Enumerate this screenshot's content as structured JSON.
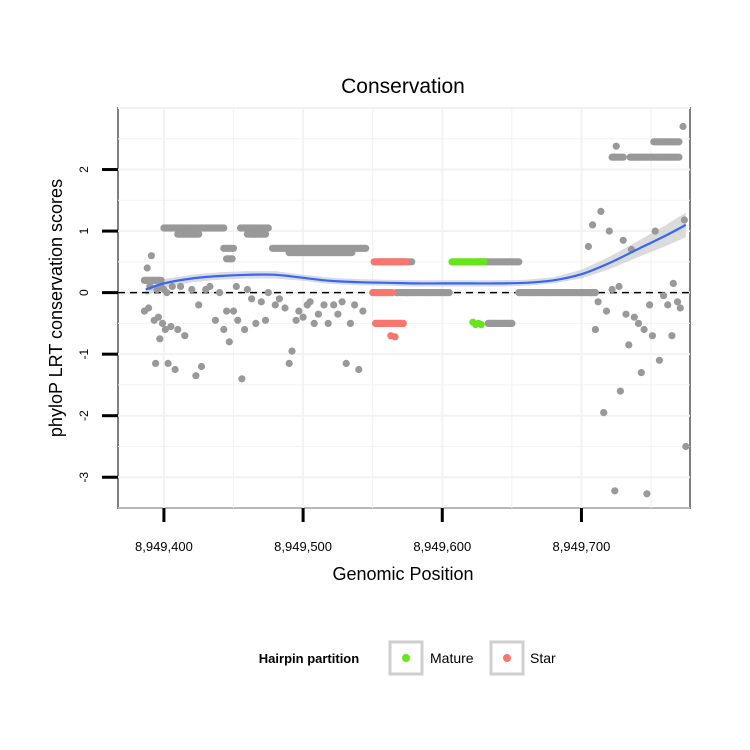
{
  "chart_data": {
    "type": "scatter",
    "title": "Conservation",
    "xlabel": "Genomic Position",
    "ylabel": "phyloP LRT conservation scores",
    "xlim": [
      8949367,
      8949778
    ],
    "ylim": [
      -3.5,
      3.0
    ],
    "x_ticks": [
      8949400,
      8949500,
      8949600,
      8949700
    ],
    "x_tick_labels": [
      "8,949,400",
      "8,949,500",
      "8,949,600",
      "8,949,700"
    ],
    "y_ticks": [
      -3,
      -2,
      -1,
      0,
      1,
      2
    ],
    "y_tick_labels": [
      "-3",
      "-2",
      "-1",
      "0",
      "1",
      "2"
    ],
    "grid": true,
    "reference_line": {
      "y": 0,
      "style": "dashed"
    },
    "legend": {
      "title": "Hairpin partition",
      "position": "bottom",
      "entries": [
        {
          "label": "Mature",
          "color": "#66e619"
        },
        {
          "label": "Star",
          "color": "#f8766d"
        }
      ]
    },
    "colors": {
      "other": "#999999",
      "Mature": "#66e619",
      "Star": "#f8766d",
      "smooth": "#3366ff",
      "ribbon": "#c8c8c8"
    },
    "series": [
      {
        "name": "Other",
        "points": [
          [
            8949386,
            -0.3
          ],
          [
            8949387,
            0.2
          ],
          [
            8949388,
            0.4
          ],
          [
            8949389,
            -0.25
          ],
          [
            8949390,
            0.1
          ],
          [
            8949391,
            0.6
          ],
          [
            8949392,
            0.2
          ],
          [
            8949393,
            -0.45
          ],
          [
            8949394,
            -1.15
          ],
          [
            8949395,
            0.05
          ],
          [
            8949396,
            -0.4
          ],
          [
            8949397,
            -0.75
          ],
          [
            8949398,
            0.1
          ],
          [
            8949399,
            -0.5
          ],
          [
            8949400,
            0.05
          ],
          [
            8949401,
            -0.6
          ],
          [
            8949402,
            0.0
          ],
          [
            8949403,
            -1.15
          ],
          [
            8949405,
            -0.55
          ],
          [
            8949406,
            0.1
          ],
          [
            8949408,
            -1.25
          ],
          [
            8949410,
            -0.6
          ],
          [
            8949412,
            0.1
          ],
          [
            8949415,
            -0.7
          ],
          [
            8949420,
            0.05
          ],
          [
            8949423,
            -1.35
          ],
          [
            8949425,
            -0.2
          ],
          [
            8949427,
            -1.2
          ],
          [
            8949430,
            0.05
          ],
          [
            8949433,
            0.1
          ],
          [
            8949437,
            -0.45
          ],
          [
            8949440,
            0.0
          ],
          [
            8949443,
            -0.6
          ],
          [
            8949445,
            -0.3
          ],
          [
            8949447,
            -0.8
          ],
          [
            8949450,
            -0.3
          ],
          [
            8949452,
            0.1
          ],
          [
            8949453,
            -0.45
          ],
          [
            8949456,
            -1.4
          ],
          [
            8949458,
            -0.6
          ],
          [
            8949460,
            0.05
          ],
          [
            8949463,
            -0.1
          ],
          [
            8949466,
            -0.5
          ],
          [
            8949470,
            -0.15
          ],
          [
            8949473,
            -0.45
          ],
          [
            8949475,
            0.0
          ],
          [
            8949480,
            -0.2
          ],
          [
            8949483,
            -0.1
          ],
          [
            8949487,
            -0.25
          ],
          [
            8949490,
            -1.15
          ],
          [
            8949492,
            -0.95
          ],
          [
            8949495,
            -0.45
          ],
          [
            8949497,
            -0.3
          ],
          [
            8949500,
            -0.4
          ],
          [
            8949503,
            -0.2
          ],
          [
            8949505,
            -0.15
          ],
          [
            8949508,
            -0.5
          ],
          [
            8949511,
            -0.35
          ],
          [
            8949515,
            -0.2
          ],
          [
            8949518,
            -0.5
          ],
          [
            8949522,
            -0.2
          ],
          [
            8949525,
            -0.35
          ],
          [
            8949528,
            -0.15
          ],
          [
            8949531,
            -1.15
          ],
          [
            8949534,
            -0.5
          ],
          [
            8949537,
            -0.2
          ],
          [
            8949540,
            -1.25
          ],
          [
            8949543,
            -0.3
          ],
          [
            8949705,
            0.75
          ],
          [
            8949707,
            0.0
          ],
          [
            8949708,
            1.1
          ],
          [
            8949710,
            -0.6
          ],
          [
            8949712,
            -0.15
          ],
          [
            8949714,
            1.32
          ],
          [
            8949716,
            -1.95
          ],
          [
            8949718,
            -0.3
          ],
          [
            8949720,
            1.0
          ],
          [
            8949722,
            0.05
          ],
          [
            8949724,
            -3.22
          ],
          [
            8949725,
            2.38
          ],
          [
            8949727,
            0.1
          ],
          [
            8949728,
            -1.6
          ],
          [
            8949730,
            0.85
          ],
          [
            8949732,
            -0.35
          ],
          [
            8949734,
            -0.85
          ],
          [
            8949736,
            0.7
          ],
          [
            8949738,
            -0.4
          ],
          [
            8949741,
            -0.5
          ],
          [
            8949743,
            -1.3
          ],
          [
            8949745,
            -0.6
          ],
          [
            8949747,
            -3.27
          ],
          [
            8949749,
            -0.2
          ],
          [
            8949751,
            -0.7
          ],
          [
            8949753,
            1.0
          ],
          [
            8949756,
            -1.1
          ],
          [
            8949759,
            -0.05
          ],
          [
            8949762,
            -0.2
          ],
          [
            8949765,
            -0.7
          ],
          [
            8949766,
            0.15
          ],
          [
            8949769,
            -0.15
          ],
          [
            8949771,
            -0.25
          ],
          [
            8949773,
            2.7
          ],
          [
            8949774,
            1.18
          ],
          [
            8949775,
            -2.5
          ]
        ],
        "runs": [
          [
            8949386,
            8949398,
            0.2
          ],
          [
            8949400,
            8949443,
            1.05
          ],
          [
            8949410,
            8949425,
            0.95
          ],
          [
            8949443,
            8949450,
            0.72
          ],
          [
            8949445,
            8949449,
            0.55
          ],
          [
            8949455,
            8949475,
            1.05
          ],
          [
            8949460,
            8949473,
            0.95
          ],
          [
            8949478,
            8949545,
            0.72
          ],
          [
            8949490,
            8949535,
            0.65
          ],
          [
            8949555,
            8949578,
            0.5
          ],
          [
            8949567,
            8949575,
            0.0
          ],
          [
            8949575,
            8949605,
            0.0
          ],
          [
            8949627,
            8949655,
            0.5
          ],
          [
            8949633,
            8949650,
            -0.5
          ],
          [
            8949655,
            8949710,
            0.0
          ],
          [
            8949722,
            8949730,
            2.2
          ],
          [
            8949735,
            8949770,
            2.2
          ],
          [
            8949752,
            8949770,
            2.45
          ]
        ]
      },
      {
        "name": "Mature",
        "runs": [
          [
            8949607,
            8949630,
            0.5
          ]
        ],
        "points": [
          [
            8949622,
            -0.48
          ],
          [
            8949624,
            -0.52
          ],
          [
            8949626,
            -0.5
          ],
          [
            8949628,
            -0.52
          ]
        ]
      },
      {
        "name": "Star",
        "runs": [
          [
            8949551,
            8949574,
            0.5
          ],
          [
            8949552,
            8949572,
            -0.5
          ],
          [
            8949550,
            8949564,
            0.0
          ]
        ],
        "points": [
          [
            8949563,
            -0.7
          ],
          [
            8949566,
            -0.72
          ]
        ]
      }
    ],
    "smooth": {
      "method": "loess",
      "x": [
        8949387,
        8949400,
        8949420,
        8949440,
        8949460,
        8949480,
        8949500,
        8949520,
        8949540,
        8949560,
        8949580,
        8949600,
        8949620,
        8949640,
        8949660,
        8949680,
        8949700,
        8949720,
        8949740,
        8949760,
        8949775
      ],
      "y": [
        0.05,
        0.15,
        0.23,
        0.27,
        0.29,
        0.29,
        0.24,
        0.19,
        0.17,
        0.16,
        0.15,
        0.15,
        0.15,
        0.15,
        0.16,
        0.2,
        0.3,
        0.48,
        0.7,
        0.92,
        1.1
      ],
      "lower": [
        -0.05,
        0.08,
        0.17,
        0.21,
        0.23,
        0.23,
        0.19,
        0.14,
        0.12,
        0.11,
        0.1,
        0.1,
        0.1,
        0.1,
        0.11,
        0.15,
        0.23,
        0.38,
        0.57,
        0.75,
        0.9
      ],
      "upper": [
        0.15,
        0.22,
        0.29,
        0.33,
        0.35,
        0.35,
        0.29,
        0.24,
        0.22,
        0.21,
        0.2,
        0.2,
        0.2,
        0.2,
        0.21,
        0.25,
        0.37,
        0.58,
        0.83,
        1.09,
        1.3
      ]
    }
  }
}
